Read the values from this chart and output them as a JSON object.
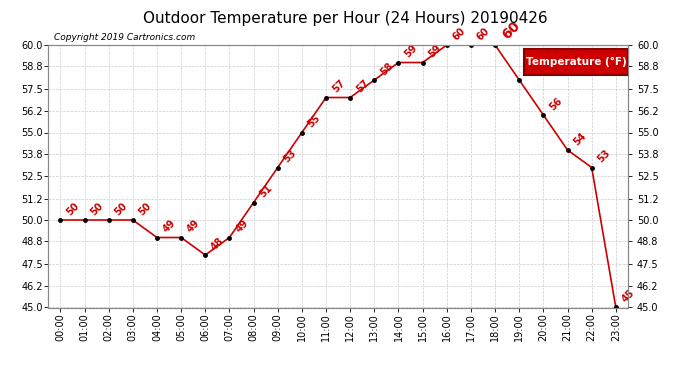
{
  "title": "Outdoor Temperature per Hour (24 Hours) 20190426",
  "copyright": "Copyright 2019 Cartronics.com",
  "legend_label": "Temperature (°F)",
  "hours": [
    "00:00",
    "01:00",
    "02:00",
    "03:00",
    "04:00",
    "05:00",
    "06:00",
    "07:00",
    "08:00",
    "09:00",
    "10:00",
    "11:00",
    "12:00",
    "13:00",
    "14:00",
    "15:00",
    "16:00",
    "17:00",
    "18:00",
    "19:00",
    "20:00",
    "21:00",
    "22:00",
    "23:00"
  ],
  "temps": [
    50,
    50,
    50,
    50,
    49,
    49,
    48,
    49,
    51,
    53,
    55,
    57,
    57,
    58,
    59,
    59,
    60,
    60,
    60,
    58,
    56,
    54,
    53,
    45
  ],
  "ylim_min": 45.0,
  "ylim_max": 60.0,
  "yticks": [
    45.0,
    46.2,
    47.5,
    48.8,
    50.0,
    51.2,
    52.5,
    53.8,
    55.0,
    56.2,
    57.5,
    58.8,
    60.0
  ],
  "line_color": "#cc0000",
  "marker_color": "#000000",
  "grid_color": "#cccccc",
  "bg_color": "#ffffff",
  "title_fontsize": 11,
  "label_fontsize": 7,
  "annotation_fontsize": 7,
  "legend_bg": "#cc0000",
  "legend_text_color": "#ffffff",
  "peak_hour_index": 18,
  "peak_label": "60",
  "peak_label_fontsize": 10
}
